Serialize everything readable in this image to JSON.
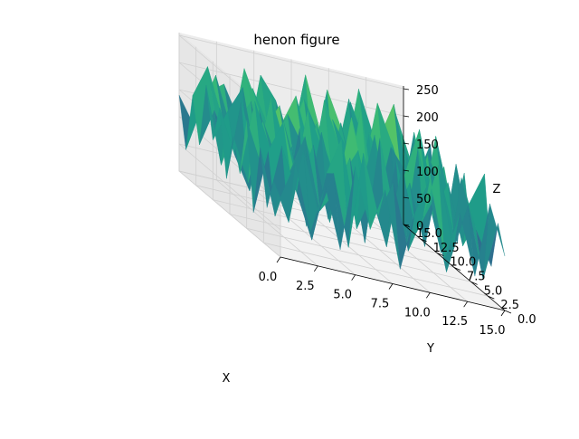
{
  "chart_data": {
    "type": "surface",
    "title": "henon figure",
    "xlabel": "X",
    "ylabel": "Y",
    "zlabel": "Z",
    "xlim": [
      0,
      15
    ],
    "ylim": [
      0,
      15
    ],
    "zlim": [
      0,
      255
    ],
    "x_ticks": [
      "0.0",
      "2.5",
      "5.0",
      "7.5",
      "10.0",
      "12.5",
      "15.0"
    ],
    "y_ticks": [
      "0.0",
      "2.5",
      "5.0",
      "7.5",
      "10.0",
      "12.5",
      "15.0"
    ],
    "z_ticks": [
      "0",
      "50",
      "100",
      "150",
      "200",
      "250"
    ],
    "colormap": "viridis",
    "grid": true,
    "surface": {
      "x": [
        0,
        1,
        2,
        3,
        4,
        5,
        6,
        7,
        8,
        9,
        10,
        11,
        12,
        13,
        14,
        15
      ],
      "y": [
        0,
        1,
        2,
        3,
        4,
        5,
        6,
        7,
        8,
        9,
        10,
        11,
        12,
        13,
        14,
        15
      ],
      "z": [
        [
          110,
          180,
          60,
          150,
          40,
          200,
          90,
          170,
          30,
          140,
          210,
          70,
          160,
          50,
          190,
          100
        ],
        [
          130,
          60,
          200,
          90,
          170,
          40,
          220,
          110,
          180,
          60,
          130,
          230,
          80,
          170,
          40,
          150
        ],
        [
          70,
          190,
          110,
          30,
          160,
          230,
          70,
          140,
          50,
          200,
          90,
          150,
          30,
          210,
          120,
          60
        ],
        [
          170,
          50,
          140,
          210,
          80,
          120,
          190,
          40,
          240,
          100,
          170,
          60,
          200,
          90,
          160,
          220
        ],
        [
          40,
          160,
          220,
          100,
          190,
          60,
          150,
          200,
          90,
          160,
          40,
          230,
          110,
          180,
          70,
          130
        ],
        [
          200,
          120,
          60,
          170,
          30,
          210,
          100,
          250,
          140,
          60,
          190,
          90,
          150,
          40,
          210,
          80
        ],
        [
          90,
          230,
          150,
          50,
          200,
          140,
          40,
          170,
          100,
          220,
          70,
          160,
          250,
          120,
          60,
          190
        ],
        [
          150,
          70,
          190,
          120,
          80,
          230,
          160,
          60,
          210,
          130,
          180,
          40,
          100,
          200,
          140,
          50
        ],
        [
          60,
          210,
          100,
          230,
          140,
          50,
          200,
          130,
          80,
          250,
          60,
          190,
          150,
          70,
          230,
          110
        ],
        [
          180,
          100,
          40,
          160,
          210,
          110,
          70,
          240,
          160,
          40,
          200,
          130,
          60,
          220,
          100,
          170
        ],
        [
          110,
          170,
          220,
          70,
          130,
          190,
          140,
          90,
          200,
          150,
          110,
          250,
          180,
          90,
          160,
          60
        ],
        [
          200,
          60,
          140,
          190,
          50,
          160,
          220,
          120,
          60,
          190,
          70,
          140,
          200,
          130,
          50,
          190
        ],
        [
          80,
          150,
          90,
          240,
          170,
          80,
          130,
          210,
          150,
          100,
          230,
          60,
          170,
          240,
          110,
          150
        ],
        [
          160,
          220,
          130,
          60,
          200,
          140,
          50,
          180,
          90,
          230,
          160,
          120,
          80,
          190,
          170,
          90
        ],
        [
          50,
          130,
          200,
          110,
          70,
          220,
          180,
          100,
          240,
          140,
          60,
          210,
          140,
          60,
          210,
          130
        ],
        [
          140,
          90,
          160,
          180,
          120,
          90,
          150,
          60,
          170,
          110,
          190,
          80,
          230,
          150,
          90,
          40
        ]
      ]
    }
  }
}
